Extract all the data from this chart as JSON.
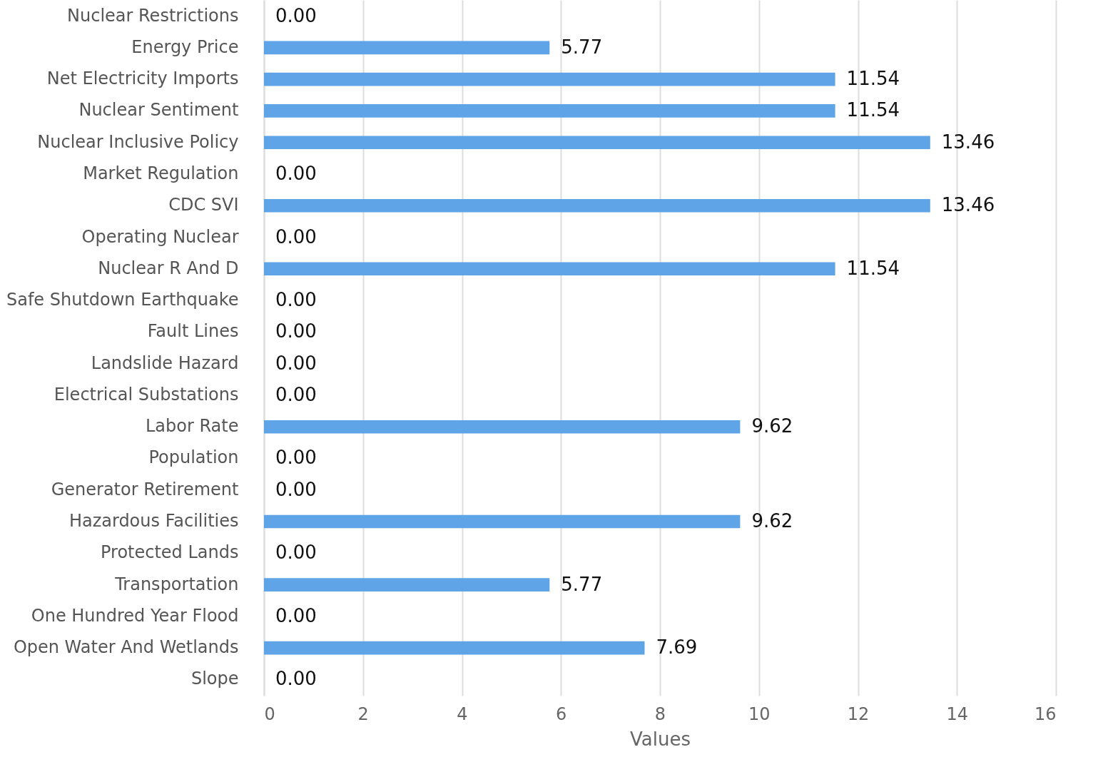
{
  "chart_data": {
    "type": "bar",
    "orientation": "horizontal",
    "xlabel": "Values",
    "categories": [
      "Nuclear Restrictions",
      "Energy Price",
      "Net Electricity Imports",
      "Nuclear Sentiment",
      "Nuclear Inclusive Policy",
      "Market Regulation",
      "CDC SVI",
      "Operating Nuclear",
      "Nuclear R And D",
      "Safe Shutdown Earthquake",
      "Fault Lines",
      "Landslide Hazard",
      "Electrical Substations",
      "Labor Rate",
      "Population",
      "Generator Retirement",
      "Hazardous Facilities",
      "Protected Lands",
      "Transportation",
      "One Hundred Year Flood",
      "Open Water And Wetlands",
      "Slope"
    ],
    "values": [
      0,
      5.77,
      11.54,
      11.54,
      13.46,
      0,
      13.46,
      0,
      11.54,
      0,
      0,
      0,
      0,
      9.62,
      0,
      0,
      9.62,
      0,
      5.77,
      0,
      7.69,
      0
    ],
    "value_labels": [
      "0.00",
      "5.77",
      "11.54",
      "11.54",
      "13.46",
      "0.00",
      "13.46",
      "0.00",
      "11.54",
      "0.00",
      "0.00",
      "0.00",
      "0.00",
      "9.62",
      "0.00",
      "0.00",
      "9.62",
      "0.00",
      "5.77",
      "0.00",
      "7.69",
      "0.00"
    ],
    "color": "#5fa4e6",
    "xlim": [
      0,
      16
    ],
    "xticks": [
      0,
      2,
      4,
      6,
      8,
      10,
      12,
      14,
      16
    ],
    "grid": "x"
  }
}
